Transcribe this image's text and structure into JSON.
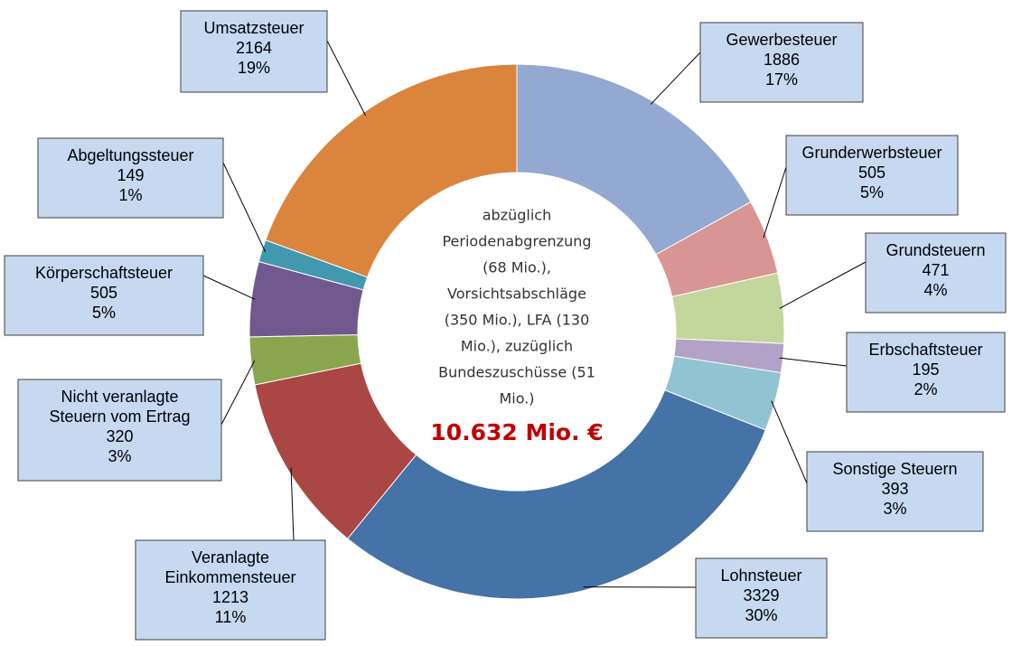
{
  "chart_data": {
    "type": "donut",
    "categories": [
      "Gewerbesteuer",
      "Grunderwerbsteuer",
      "Grundsteuern",
      "Erbschaftsteuer",
      "Sonstige Steuern",
      "Lohnsteuer",
      "Veranlagte Einkommensteuer",
      "Nicht veranlagte Steuern vom Ertrag",
      "Körperschaftsteuer",
      "Abgeltungssteuer",
      "Umsatzsteuer"
    ],
    "values": [
      1886,
      505,
      471,
      195,
      393,
      3329,
      1213,
      320,
      505,
      149,
      2164
    ],
    "shares": [
      {
        "value": 17,
        "label": "17%"
      },
      {
        "value": 5,
        "label": "5%"
      },
      {
        "value": 4,
        "label": "4%"
      },
      {
        "value": 2,
        "label": "2%"
      },
      {
        "value": 3,
        "label": "3%"
      },
      {
        "value": 30,
        "label": "30%"
      },
      {
        "value": 11,
        "label": "11%"
      },
      {
        "value": 3,
        "label": "3%"
      },
      {
        "value": 5,
        "label": "5%"
      },
      {
        "value": 1,
        "label": "1%"
      },
      {
        "value": 19,
        "label": "19%"
      }
    ],
    "colors": [
      "#93a9d1",
      "#d99594",
      "#c3d69b",
      "#b3a2c7",
      "#92c3d2",
      "#4572a7",
      "#aa4643",
      "#89a54e",
      "#71588f",
      "#4198af",
      "#db843d"
    ],
    "annotation": [
      "abzüglich",
      "Periodenabgrenzung",
      "(68 Mio.),",
      "Vorsichtsabschläge",
      "(350 Mio.), LFA (130",
      "Mio.), zuzüglich",
      "Bundeszuschüsse (51",
      "Mio.)"
    ],
    "total": "10.632 Mio. €"
  }
}
